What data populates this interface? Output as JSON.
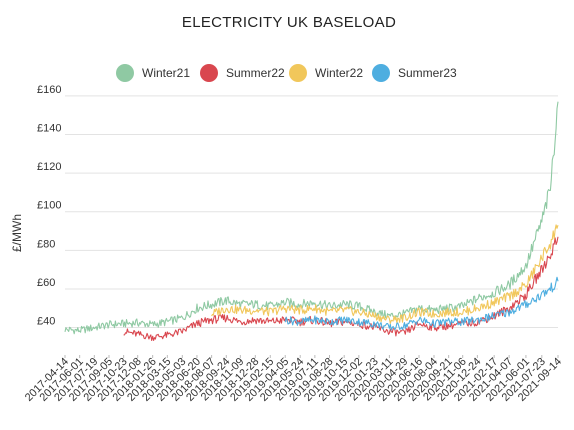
{
  "chart_data": {
    "type": "line",
    "title": "ELECTRICITY UK BASELOAD",
    "ylabel": "£/MWh",
    "xlabel": "",
    "ylim": [
      32,
      162
    ],
    "yticks": [
      {
        "value": 40,
        "label": "£40"
      },
      {
        "value": 60,
        "label": "£60"
      },
      {
        "value": 80,
        "label": "£80"
      },
      {
        "value": 100,
        "label": "£100"
      },
      {
        "value": 120,
        "label": "£120"
      },
      {
        "value": 140,
        "label": "£140"
      },
      {
        "value": 160,
        "label": "£160"
      }
    ],
    "x_tick_labels": [
      "2017-04-14",
      "2017-06-01",
      "2017-07-19",
      "2017-09-05",
      "2017-10-23",
      "2017-12-08",
      "2018-01-26",
      "2018-03-15",
      "2018-05-03",
      "2018-06-20",
      "2018-08-07",
      "2018-09-24",
      "2018-11-09",
      "2018-12-28",
      "2019-02-15",
      "2019-04-05",
      "2019-05-24",
      "2019-07-11",
      "2019-08-28",
      "2019-10-15",
      "2019-12-02",
      "2020-01-23",
      "2020-03-11",
      "2020-04-29",
      "2020-06-16",
      "2020-08-04",
      "2020-09-21",
      "2020-11-06",
      "2020-12-24",
      "2021-02-17",
      "2021-04-07",
      "2021-06-01",
      "2021-07-23",
      "2021-09-14"
    ],
    "gridlines": "horizontal",
    "legend_position": "top-center",
    "series": [
      {
        "name": "Winter21",
        "color": "#8fc9a3",
        "points": [
          [
            "2017-04-14",
            39
          ],
          [
            "2017-06-01",
            38.5
          ],
          [
            "2017-07-19",
            40
          ],
          [
            "2017-09-05",
            41.5
          ],
          [
            "2017-10-23",
            42
          ],
          [
            "2017-12-08",
            42.5
          ],
          [
            "2018-01-26",
            41.5
          ],
          [
            "2018-03-15",
            43
          ],
          [
            "2018-05-03",
            45
          ],
          [
            "2018-06-20",
            50
          ],
          [
            "2018-08-07",
            52
          ],
          [
            "2018-09-24",
            54
          ],
          [
            "2018-11-09",
            52
          ],
          [
            "2018-12-28",
            52
          ],
          [
            "2019-02-15",
            51
          ],
          [
            "2019-04-05",
            53
          ],
          [
            "2019-05-24",
            52
          ],
          [
            "2019-07-11",
            53
          ],
          [
            "2019-08-28",
            51
          ],
          [
            "2019-10-15",
            52
          ],
          [
            "2019-12-02",
            51
          ],
          [
            "2020-01-23",
            48
          ],
          [
            "2020-03-11",
            46
          ],
          [
            "2020-04-29",
            47
          ],
          [
            "2020-06-16",
            50
          ],
          [
            "2020-08-04",
            49
          ],
          [
            "2020-09-21",
            50
          ],
          [
            "2020-11-06",
            51
          ],
          [
            "2020-12-24",
            55
          ],
          [
            "2021-02-17",
            58
          ],
          [
            "2021-04-07",
            62
          ],
          [
            "2021-06-01",
            72
          ],
          [
            "2021-07-23",
            95
          ],
          [
            "2021-08-20",
            112
          ],
          [
            "2021-09-14",
            157
          ]
        ]
      },
      {
        "name": "Summer22",
        "color": "#d9474f",
        "points": [
          [
            "2017-10-23",
            38
          ],
          [
            "2017-12-08",
            36.5
          ],
          [
            "2018-01-26",
            35
          ],
          [
            "2018-03-15",
            36
          ],
          [
            "2018-05-03",
            38
          ],
          [
            "2018-06-20",
            42
          ],
          [
            "2018-08-07",
            44
          ],
          [
            "2018-09-24",
            45
          ],
          [
            "2018-11-09",
            43
          ],
          [
            "2018-12-28",
            44
          ],
          [
            "2019-02-15",
            43
          ],
          [
            "2019-04-05",
            44
          ],
          [
            "2019-05-24",
            43
          ],
          [
            "2019-07-11",
            44
          ],
          [
            "2019-08-28",
            42
          ],
          [
            "2019-10-15",
            43
          ],
          [
            "2019-12-02",
            42
          ],
          [
            "2020-01-23",
            40
          ],
          [
            "2020-03-11",
            38
          ],
          [
            "2020-04-29",
            37
          ],
          [
            "2020-06-16",
            42
          ],
          [
            "2020-08-04",
            40
          ],
          [
            "2020-09-21",
            41
          ],
          [
            "2020-11-06",
            42
          ],
          [
            "2020-12-24",
            43
          ],
          [
            "2021-02-17",
            46
          ],
          [
            "2021-04-07",
            50
          ],
          [
            "2021-06-01",
            57
          ],
          [
            "2021-07-23",
            70
          ],
          [
            "2021-08-20",
            78
          ],
          [
            "2021-09-14",
            87
          ]
        ]
      },
      {
        "name": "Winter22",
        "color": "#f1c75b",
        "points": [
          [
            "2018-08-07",
            47
          ],
          [
            "2018-09-24",
            50
          ],
          [
            "2018-11-09",
            49
          ],
          [
            "2018-12-28",
            49
          ],
          [
            "2019-02-15",
            48
          ],
          [
            "2019-04-05",
            50
          ],
          [
            "2019-05-24",
            49
          ],
          [
            "2019-07-11",
            50
          ],
          [
            "2019-08-28",
            48
          ],
          [
            "2019-10-15",
            49
          ],
          [
            "2019-12-02",
            48
          ],
          [
            "2020-01-23",
            46
          ],
          [
            "2020-03-11",
            44
          ],
          [
            "2020-04-29",
            45
          ],
          [
            "2020-06-16",
            48
          ],
          [
            "2020-08-04",
            47
          ],
          [
            "2020-09-21",
            48
          ],
          [
            "2020-11-06",
            48
          ],
          [
            "2020-12-24",
            50
          ],
          [
            "2021-02-17",
            53
          ],
          [
            "2021-04-07",
            56
          ],
          [
            "2021-06-01",
            62
          ],
          [
            "2021-07-23",
            76
          ],
          [
            "2021-08-20",
            84
          ],
          [
            "2021-09-14",
            93
          ]
        ]
      },
      {
        "name": "Summer23",
        "color": "#4eaee0",
        "points": [
          [
            "2019-04-05",
            44
          ],
          [
            "2019-05-24",
            43
          ],
          [
            "2019-07-11",
            44
          ],
          [
            "2019-08-28",
            43
          ],
          [
            "2019-10-15",
            44
          ],
          [
            "2019-12-02",
            43
          ],
          [
            "2020-01-23",
            42
          ],
          [
            "2020-03-11",
            40
          ],
          [
            "2020-04-29",
            41
          ],
          [
            "2020-06-16",
            44
          ],
          [
            "2020-08-04",
            42
          ],
          [
            "2020-09-21",
            43
          ],
          [
            "2020-11-06",
            43
          ],
          [
            "2020-12-24",
            44
          ],
          [
            "2021-02-17",
            46
          ],
          [
            "2021-04-07",
            48
          ],
          [
            "2021-06-01",
            52
          ],
          [
            "2021-07-23",
            57
          ],
          [
            "2021-08-20",
            60
          ],
          [
            "2021-09-14",
            64
          ]
        ]
      }
    ]
  }
}
